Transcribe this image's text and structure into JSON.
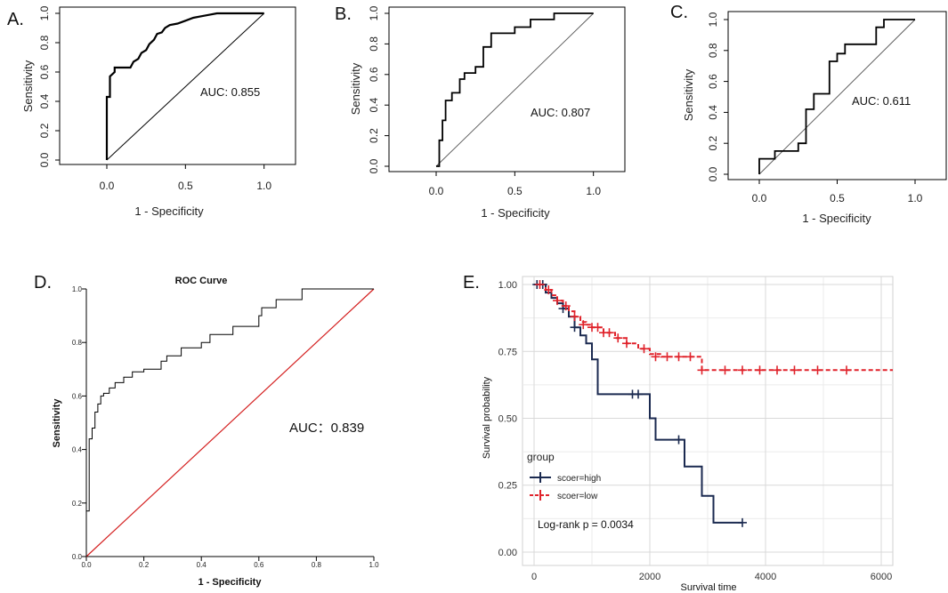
{
  "chart_data": [
    {
      "id": "A",
      "type": "line",
      "panel_label": "A.",
      "xlabel": "1 - Specificity",
      "ylabel": "Sensitivity",
      "xlim": [
        -0.3,
        1.2
      ],
      "ylim": [
        0,
        1
      ],
      "xticks": [
        "0.0",
        "0.5",
        "1.0"
      ],
      "yticks": [
        "0.0",
        "0.2",
        "0.4",
        "0.6",
        "0.8",
        "1.0"
      ],
      "annotation": "AUC: 0.855",
      "roc_x": [
        0,
        0,
        0.02,
        0.02,
        0.05,
        0.05,
        0.15,
        0.17,
        0.2,
        0.22,
        0.25,
        0.27,
        0.3,
        0.32,
        0.35,
        0.37,
        0.4,
        0.45,
        0.5,
        0.55,
        0.6,
        0.65,
        0.7,
        0.8,
        0.9,
        1.0
      ],
      "roc_y": [
        0,
        0.43,
        0.43,
        0.57,
        0.6,
        0.63,
        0.63,
        0.67,
        0.69,
        0.73,
        0.75,
        0.79,
        0.82,
        0.86,
        0.87,
        0.9,
        0.92,
        0.93,
        0.95,
        0.97,
        0.98,
        0.99,
        1.0,
        1.0,
        1.0,
        1.0
      ],
      "diagonal": true
    },
    {
      "id": "B",
      "type": "line",
      "panel_label": "B.",
      "xlabel": "1 - Specificity",
      "ylabel": "Sensitivity",
      "xlim": [
        -0.3,
        1.2
      ],
      "ylim": [
        0,
        1
      ],
      "xticks": [
        "0.0",
        "0.5",
        "1.0"
      ],
      "yticks": [
        "0.0",
        "0.2",
        "0.4",
        "0.6",
        "0.8",
        "1.0"
      ],
      "annotation": "AUC: 0.807",
      "roc_x": [
        0,
        0.02,
        0.02,
        0.04,
        0.04,
        0.06,
        0.06,
        0.1,
        0.1,
        0.15,
        0.15,
        0.18,
        0.18,
        0.25,
        0.25,
        0.3,
        0.3,
        0.35,
        0.35,
        0.5,
        0.5,
        0.6,
        0.6,
        0.75,
        0.75,
        1.0
      ],
      "roc_y": [
        0,
        0,
        0.17,
        0.17,
        0.3,
        0.3,
        0.43,
        0.43,
        0.48,
        0.48,
        0.57,
        0.57,
        0.61,
        0.61,
        0.65,
        0.65,
        0.78,
        0.78,
        0.87,
        0.87,
        0.91,
        0.91,
        0.96,
        0.96,
        1.0,
        1.0
      ],
      "diagonal": true
    },
    {
      "id": "C",
      "type": "line",
      "panel_label": "C.",
      "xlabel": "1 - Specificity",
      "ylabel": "Sensitivity",
      "xlim": [
        -0.2,
        1.2
      ],
      "ylim": [
        0,
        1
      ],
      "xticks": [
        "0.0",
        "0.5",
        "1.0"
      ],
      "yticks": [
        "0.0",
        "0.2",
        "0.4",
        "0.6",
        "0.8",
        "1.0"
      ],
      "annotation": "AUC: 0.611",
      "roc_x": [
        0,
        0,
        0.1,
        0.1,
        0.25,
        0.25,
        0.3,
        0.3,
        0.35,
        0.35,
        0.45,
        0.45,
        0.5,
        0.5,
        0.55,
        0.55,
        0.75,
        0.75,
        0.8,
        0.8,
        1.0
      ],
      "roc_y": [
        0,
        0.1,
        0.1,
        0.15,
        0.15,
        0.2,
        0.2,
        0.42,
        0.42,
        0.52,
        0.52,
        0.73,
        0.73,
        0.78,
        0.78,
        0.84,
        0.84,
        0.95,
        0.95,
        1.0,
        1.0
      ],
      "diagonal": true
    },
    {
      "id": "D",
      "type": "line",
      "panel_label": "D.",
      "title": "ROC Curve",
      "xlabel": "1 - Specificity",
      "ylabel": "Sensitivity",
      "xlim": [
        0,
        1
      ],
      "ylim": [
        0,
        1
      ],
      "xticks": [
        "0.0",
        "0.2",
        "0.4",
        "0.6",
        "0.8",
        "1.0"
      ],
      "yticks": [
        "0.0",
        "0.2",
        "0.4",
        "0.6",
        "0.8",
        "1.0"
      ],
      "annotation": "AUC：0.839",
      "roc_x": [
        0,
        0,
        0.01,
        0.01,
        0.02,
        0.02,
        0.03,
        0.03,
        0.04,
        0.04,
        0.05,
        0.05,
        0.06,
        0.06,
        0.08,
        0.08,
        0.1,
        0.1,
        0.13,
        0.13,
        0.16,
        0.16,
        0.2,
        0.2,
        0.26,
        0.26,
        0.28,
        0.28,
        0.33,
        0.33,
        0.4,
        0.4,
        0.43,
        0.43,
        0.51,
        0.51,
        0.6,
        0.6,
        0.61,
        0.61,
        0.66,
        0.66,
        0.75,
        0.75,
        1.0
      ],
      "roc_y": [
        0,
        0.17,
        0.17,
        0.44,
        0.44,
        0.48,
        0.48,
        0.54,
        0.54,
        0.57,
        0.57,
        0.6,
        0.6,
        0.61,
        0.61,
        0.63,
        0.63,
        0.65,
        0.65,
        0.67,
        0.67,
        0.69,
        0.69,
        0.7,
        0.7,
        0.73,
        0.73,
        0.75,
        0.75,
        0.78,
        0.78,
        0.8,
        0.8,
        0.83,
        0.83,
        0.86,
        0.86,
        0.9,
        0.9,
        0.93,
        0.93,
        0.96,
        0.96,
        1.0,
        1.0
      ],
      "diagonal": true,
      "curve_color": "#000000",
      "diagonal_color": "#d42020"
    },
    {
      "id": "E",
      "type": "line",
      "panel_label": "E.",
      "xlabel": "Survival time",
      "ylabel": "Survival probability",
      "xlim": [
        -200,
        6200
      ],
      "ylim": [
        -0.05,
        1.03
      ],
      "xticks": [
        "0",
        "2000",
        "4000",
        "6000"
      ],
      "xtick_values": [
        0,
        2000,
        4000,
        6000
      ],
      "yticks": [
        "0.00",
        "0.25",
        "0.50",
        "0.75",
        "1.00"
      ],
      "ytick_values": [
        0,
        0.25,
        0.5,
        0.75,
        1.0
      ],
      "legend_title": "group",
      "annotation": "Log-rank  p = 0.0034",
      "series": [
        {
          "name": "scoer=high",
          "color": "#1b2a50",
          "x": [
            0,
            100,
            200,
            300,
            400,
            500,
            600,
            700,
            800,
            900,
            1000,
            1100,
            1800,
            1900,
            2000,
            2100,
            2500,
            2600,
            2800,
            2900,
            3100,
            3600
          ],
          "y": [
            1.0,
            1.0,
            0.97,
            0.95,
            0.93,
            0.91,
            0.88,
            0.84,
            0.81,
            0.78,
            0.72,
            0.59,
            0.59,
            0.59,
            0.5,
            0.42,
            0.42,
            0.32,
            0.32,
            0.21,
            0.11,
            0.11
          ],
          "censor_x": [
            50,
            150,
            500,
            700,
            1700,
            1800,
            2500,
            3600
          ],
          "censor_y": [
            1.0,
            1.0,
            0.91,
            0.84,
            0.59,
            0.59,
            0.42,
            0.11
          ]
        },
        {
          "name": "scoer=low",
          "color": "#e0232b",
          "x": [
            0,
            200,
            300,
            400,
            500,
            600,
            700,
            800,
            900,
            1000,
            1200,
            1400,
            1600,
            1800,
            2000,
            2200,
            2400,
            2800,
            2900,
            3000,
            6200
          ],
          "y": [
            1.0,
            0.98,
            0.96,
            0.94,
            0.92,
            0.9,
            0.88,
            0.86,
            0.85,
            0.84,
            0.82,
            0.8,
            0.78,
            0.76,
            0.74,
            0.73,
            0.73,
            0.73,
            0.68,
            0.68,
            0.68
          ],
          "censor_x": [
            100,
            250,
            400,
            550,
            700,
            850,
            1000,
            1100,
            1200,
            1300,
            1450,
            1600,
            1900,
            2100,
            2300,
            2500,
            2700,
            2900,
            3300,
            3600,
            3900,
            4200,
            4500,
            4900,
            5400
          ],
          "censor_y": [
            1.0,
            0.98,
            0.94,
            0.92,
            0.88,
            0.85,
            0.84,
            0.84,
            0.82,
            0.82,
            0.8,
            0.78,
            0.76,
            0.73,
            0.73,
            0.73,
            0.73,
            0.68,
            0.68,
            0.68,
            0.68,
            0.68,
            0.68,
            0.68,
            0.68
          ]
        }
      ]
    }
  ]
}
